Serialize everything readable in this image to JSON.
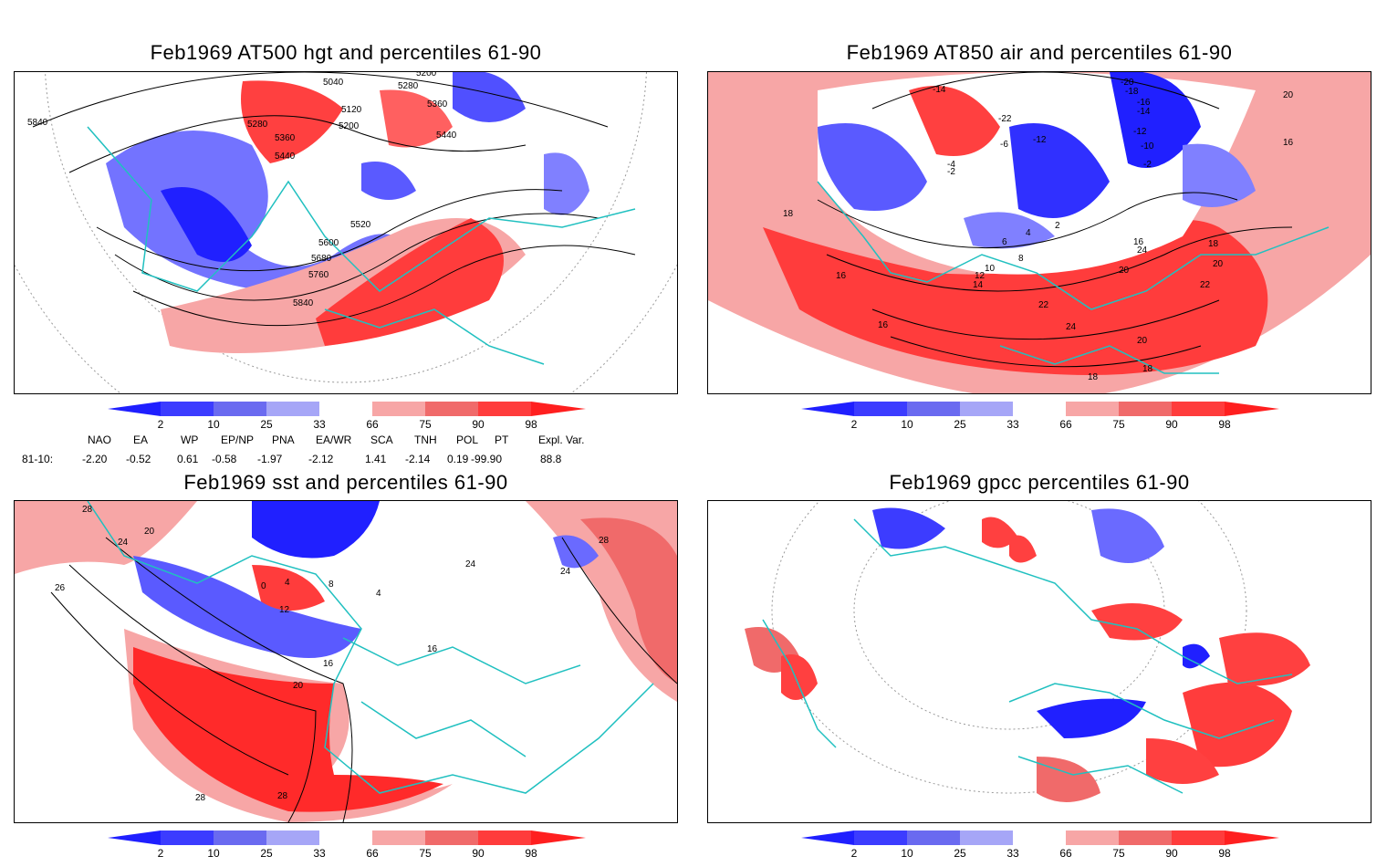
{
  "panels": [
    {
      "title": "Feb1969 AT500 hgt and percentiles 61-90",
      "contour_labels": [
        "5040",
        "5200",
        "5280",
        "5360",
        "5120",
        "5200",
        "5280",
        "5360",
        "5440",
        "5440",
        "5520",
        "5600",
        "5680",
        "5760",
        "5840",
        "5840"
      ]
    },
    {
      "title": "Feb1969 AT850 air and percentiles 61-90",
      "contour_labels": [
        "-14",
        "-18",
        "-20",
        "-16",
        "-14",
        "-12",
        "-10",
        "-22",
        "-12",
        "-4",
        "-2",
        "-6",
        "-2",
        "2",
        "4",
        "6",
        "8",
        "10",
        "12",
        "14",
        "16",
        "18",
        "20",
        "22",
        "24",
        "20",
        "22",
        "24",
        "16",
        "18",
        "20",
        "16",
        "18",
        "18",
        "16",
        "20"
      ]
    },
    {
      "title": "Feb1969 sst and percentiles 61-90",
      "contour_labels": [
        "28",
        "20",
        "24",
        "26",
        "0",
        "4",
        "8",
        "12",
        "16",
        "16",
        "20",
        "24",
        "28",
        "28",
        "28",
        "24",
        "4"
      ]
    },
    {
      "title": "Feb1969 gpcc percentiles 61-90",
      "contour_labels": []
    }
  ],
  "colorbar": {
    "labels": [
      "2",
      "10",
      "25",
      "33",
      "66",
      "75",
      "90",
      "98"
    ],
    "colors": [
      "#1f1fff",
      "#3c3cff",
      "#6a6af0",
      "#a6a6f7",
      "#ffffff",
      "#f7a6a6",
      "#f06a6a",
      "#ff3c3c",
      "#ff1f1f"
    ]
  },
  "indices": {
    "headers": [
      "NAO",
      "EA",
      "WP",
      "EP/NP",
      "PNA",
      "EA/WR",
      "SCA",
      "TNH",
      "POL",
      "PT",
      "Expl. Var."
    ],
    "row_label": "81-10:",
    "values": [
      "-2.20",
      "-0.52",
      "0.61",
      "-0.58",
      "-1.97",
      "-2.12",
      "1.41",
      "-2.14",
      "0.19",
      "-99.90",
      "88.8"
    ]
  },
  "colors": {
    "coast": "#20c0c0",
    "red": "#f03030",
    "blue": "#3030ff"
  }
}
